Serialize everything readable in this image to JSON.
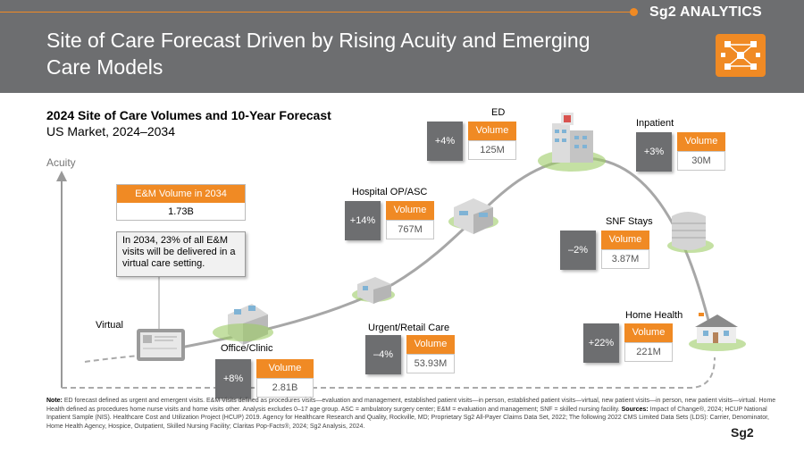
{
  "header": {
    "brand": "Sg2 ANALYTICS",
    "title": "Site of Care Forecast Driven by Rising Acuity and Emerging Care Models"
  },
  "subtitle": {
    "line1": "2024 Site of Care Volumes and 10-Year Forecast",
    "line2": "US Market, 2024–2034"
  },
  "axis_label": "Acuity",
  "em_box": {
    "title": "E&M Volume in 2034",
    "value": "1.73B"
  },
  "callout": "In 2034, 23% of all E&M visits will be delivered in a virtual care setting.",
  "volume_label": "Volume",
  "sites": {
    "virtual": {
      "name": "Virtual"
    },
    "office": {
      "name": "Office/Clinic",
      "delta": "+8%",
      "value": "2.81B"
    },
    "urgent": {
      "name": "Urgent/Retail Care",
      "delta": "–4%",
      "value": "53.93M"
    },
    "hopd": {
      "name": "Hospital OP/ASC",
      "delta": "+14%",
      "value": "767M"
    },
    "ed": {
      "name": "ED",
      "delta": "+4%",
      "value": "125M"
    },
    "inpatient": {
      "name": "Inpatient",
      "delta": "+3%",
      "value": "30M"
    },
    "snf": {
      "name": "SNF Stays",
      "delta": "–2%",
      "value": "3.87M"
    },
    "home": {
      "name": "Home Health",
      "delta": "+22%",
      "value": "221M"
    }
  },
  "footer": {
    "note_label": "Note:",
    "note": "ED forecast defined as urgent and emergent visits. E&M Visits defined as procedures visits—evaluation and management, established patient visits—in person, established patient visits—virtual, new patient visits—in person, new patient visits—virtual. Home Health defined as procedures home nurse visits and home visits other. Analysis excludes 0–17 age group. ASC = ambulatory surgery center; E&M = evaluation and management; SNF = skilled nursing facility.",
    "sources_label": "Sources:",
    "sources": "Impact of Change®, 2024; HCUP National Inpatient Sample (NIS). Healthcare Cost and Utilization Project (HCUP) 2019. Agency for Healthcare Research and Quality, Rockville, MD; Proprietary Sg2 All-Payer Claims Data Set, 2022; The following 2022 CMS Limited Data Sets (LDS): Carrier, Denominator, Home Health Agency, Hospice, Outpatient, Skilled Nursing Facility; Claritas Pop-Facts®, 2024; Sg2 Analysis, 2024.",
    "logo": "Sg2"
  },
  "colors": {
    "accent": "#f08a24",
    "banner": "#6d6e70",
    "curve": "#a7a7a7"
  }
}
